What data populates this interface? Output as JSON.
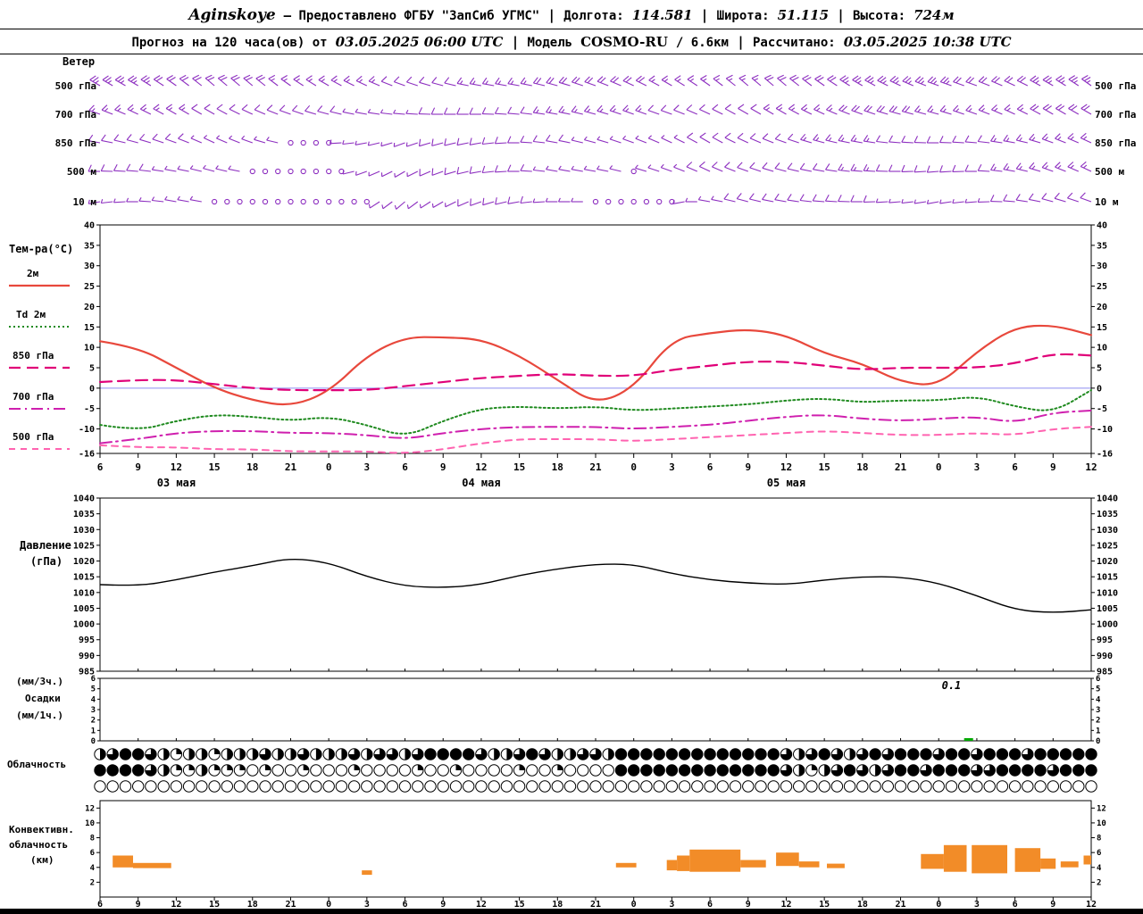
{
  "header1": {
    "station": "Aginskoye",
    "provider": "— Предоставлено ФГБУ \"ЗапСиб УГМС\"",
    "sep": "|",
    "lon_label": "Долгота:",
    "lon_value": "114.581",
    "lat_label": "Широта:",
    "lat_value": "51.115",
    "alt_label": "Высота:",
    "alt_value": "724м"
  },
  "header2": {
    "forecast_label": "Прогноз на 120 часа(ов) от",
    "forecast_start": "03.05.2025 06:00 UTC",
    "sep": "|",
    "model_label": "Модель",
    "model_name": "COSMO-RU",
    "model_suffix": "/ 6.6км",
    "calc_label": "Рассчитано:",
    "calc_value": "03.05.2025 10:38 UTC"
  },
  "panels": {
    "wind_title": "Ветер",
    "temp_title": "Тем-ра(°C)",
    "pressure_line1": "Давление",
    "pressure_line2": "(гПа)",
    "precip_line1": "(мм/3ч.)",
    "precip_line2": "Осадки",
    "precip_line3": "(мм/1ч.)",
    "cloud_title": "Облачность",
    "conv_line1": "Конвективн.",
    "conv_line2": "облачность",
    "conv_line3": "(км)"
  },
  "chart_data": {
    "type": "meteogram",
    "x": {
      "tick_labels": [
        "6",
        "9",
        "12",
        "15",
        "18",
        "21",
        "0",
        "3",
        "6",
        "9",
        "12",
        "15",
        "18",
        "21",
        "0",
        "3",
        "6",
        "9",
        "12",
        "15",
        "18",
        "21",
        "0",
        "3",
        "6",
        "9",
        "12"
      ],
      "hours_span": 78,
      "step_hours": 3,
      "date_labels": [
        {
          "text": "03 мая",
          "noon_hour": 6
        },
        {
          "text": "04 мая",
          "noon_hour": 30
        },
        {
          "text": "05 мая",
          "noon_hour": 54
        }
      ]
    },
    "wind": {
      "color": "#8d2fc0",
      "levels": [
        {
          "name": "500 гПа",
          "dir": [
            300,
            300,
            305,
            310,
            310,
            305,
            300,
            295,
            290,
            285,
            280,
            280,
            285,
            290,
            295,
            300,
            305,
            310,
            310,
            305,
            300,
            295,
            290,
            290,
            295,
            300,
            305
          ],
          "spd": [
            25,
            25,
            20,
            20,
            20,
            15,
            15,
            15,
            10,
            10,
            15,
            15,
            20,
            20,
            20,
            15,
            15,
            15,
            20,
            20,
            25,
            25,
            25,
            20,
            20,
            25,
            25
          ]
        },
        {
          "name": "700 гПа",
          "dir": [
            290,
            295,
            300,
            300,
            295,
            290,
            285,
            280,
            275,
            270,
            270,
            275,
            280,
            285,
            290,
            290,
            295,
            300,
            300,
            295,
            290,
            285,
            285,
            290,
            295,
            300,
            300
          ],
          "spd": [
            15,
            15,
            15,
            10,
            10,
            10,
            10,
            5,
            5,
            10,
            10,
            10,
            15,
            15,
            15,
            10,
            10,
            10,
            15,
            15,
            20,
            20,
            15,
            15,
            15,
            20,
            20
          ]
        },
        {
          "name": "850 гПа",
          "dir": [
            280,
            285,
            290,
            295,
            290,
            280,
            270,
            260,
            250,
            255,
            260,
            270,
            280,
            285,
            290,
            295,
            300,
            295,
            290,
            285,
            280,
            275,
            270,
            275,
            280,
            290,
            295
          ],
          "spd": [
            10,
            10,
            10,
            5,
            5,
            2,
            2,
            5,
            5,
            10,
            10,
            10,
            10,
            5,
            5,
            5,
            10,
            10,
            10,
            15,
            15,
            10,
            10,
            10,
            15,
            15,
            15
          ]
        },
        {
          "name": "500 м",
          "dir": [
            270,
            275,
            280,
            285,
            280,
            270,
            270,
            250,
            240,
            250,
            260,
            270,
            280,
            280,
            285,
            290,
            295,
            290,
            285,
            280,
            275,
            270,
            265,
            270,
            280,
            290,
            295
          ],
          "spd": [
            10,
            10,
            5,
            5,
            2,
            2,
            0,
            5,
            5,
            10,
            10,
            10,
            5,
            5,
            2,
            5,
            10,
            10,
            10,
            10,
            15,
            10,
            10,
            10,
            15,
            15,
            15
          ]
        },
        {
          "name": "10 м",
          "dir": [
            260,
            270,
            280,
            280,
            270,
            260,
            260,
            240,
            230,
            240,
            250,
            260,
            270,
            270,
            260,
            250,
            280,
            285,
            280,
            275,
            270,
            265,
            260,
            265,
            275,
            285,
            290
          ],
          "spd": [
            5,
            5,
            5,
            2,
            2,
            0,
            0,
            2,
            5,
            5,
            10,
            10,
            5,
            2,
            0,
            2,
            5,
            10,
            10,
            10,
            10,
            5,
            5,
            5,
            10,
            10,
            10
          ]
        }
      ]
    },
    "temperature": {
      "ylim": [
        -16,
        40
      ],
      "yticks": [
        40,
        35,
        30,
        25,
        20,
        15,
        10,
        5,
        0,
        -5,
        -10,
        -16
      ],
      "zero_line_color": "#8c8cf0",
      "series": [
        {
          "name": "2м",
          "color": "#e8483c",
          "style": "solid",
          "width": 2.2,
          "values": [
            11.5,
            10,
            5,
            0,
            -3,
            -4.5,
            -1,
            8,
            12.5,
            12.5,
            12,
            8,
            2,
            -4,
            0,
            12,
            13.5,
            14.5,
            13,
            8.5,
            6,
            1.5,
            0.5,
            9,
            15,
            15.5,
            13
          ]
        },
        {
          "name": "Td 2м",
          "color": "#1f8a1f",
          "style": "dotted",
          "width": 2,
          "values": [
            -9,
            -10.5,
            -8,
            -6.5,
            -7,
            -8,
            -7,
            -9,
            -12,
            -8,
            -5,
            -4.5,
            -5,
            -4.5,
            -5.5,
            -5,
            -4.5,
            -4,
            -3,
            -2.5,
            -3.5,
            -3,
            -3,
            -2,
            -4.5,
            -6,
            -0.5
          ]
        },
        {
          "name": "850 гПа",
          "color": "#e00078",
          "style": "longdash",
          "width": 2.2,
          "values": [
            1.5,
            2,
            2,
            1,
            0,
            -0.5,
            -0.5,
            -0.5,
            0.5,
            1.5,
            2.5,
            3,
            3.5,
            3,
            3,
            4.5,
            5.5,
            6.5,
            6.5,
            5.5,
            4.5,
            5,
            5,
            5,
            6,
            8.5,
            8
          ]
        },
        {
          "name": "700 гПа",
          "color": "#cf1fae",
          "style": "dashdot",
          "width": 2,
          "values": [
            -13.5,
            -12.5,
            -11,
            -10.5,
            -10.5,
            -11,
            -11,
            -11.5,
            -12.5,
            -11,
            -10,
            -9.5,
            -9.5,
            -9.5,
            -10,
            -9.5,
            -9,
            -8,
            -7,
            -6.5,
            -7.5,
            -8,
            -7.5,
            -7,
            -8.5,
            -6,
            -5.5
          ]
        },
        {
          "name": "500 гПа",
          "color": "#ff63b0",
          "style": "shortdash",
          "width": 2,
          "values": [
            -14,
            -14.5,
            -14.5,
            -15,
            -15,
            -15.5,
            -15.5,
            -15.5,
            -16,
            -15,
            -13.5,
            -12.5,
            -12.5,
            -12.5,
            -13,
            -12.5,
            -12,
            -11.5,
            -11,
            -10.5,
            -11,
            -11.5,
            -11.5,
            -11,
            -11.5,
            -10,
            -9.5
          ]
        }
      ]
    },
    "pressure": {
      "ylim": [
        985,
        1040
      ],
      "yticks": [
        1040,
        1035,
        1030,
        1025,
        1020,
        1015,
        1010,
        1005,
        1000,
        995,
        990,
        985
      ],
      "color": "#000000",
      "values": [
        1012.5,
        1012,
        1014,
        1016.5,
        1018.5,
        1021,
        1019.5,
        1015,
        1012,
        1011.5,
        1012.5,
        1015.5,
        1017.5,
        1019,
        1019,
        1016,
        1014,
        1013,
        1012.5,
        1014,
        1015,
        1015,
        1013,
        1009,
        1004.5,
        1003.5,
        1004.5
      ]
    },
    "precipitation": {
      "ylim": [
        0,
        6
      ],
      "yticks": [
        6,
        5,
        4,
        3,
        2,
        1,
        0
      ],
      "bar_color": "#00a800",
      "bars_3h": [
        {
          "hour": 68,
          "value": 0.1
        }
      ],
      "annotation": {
        "text": "0.1",
        "hour": 67
      }
    },
    "cloudiness": {
      "rows_octas": [
        [
          4,
          6,
          8,
          8,
          6,
          4,
          2,
          4,
          4,
          2,
          4,
          4,
          4,
          6,
          4,
          4,
          6,
          4,
          4,
          4,
          6,
          4,
          6,
          6,
          4,
          6,
          8,
          8,
          8,
          8,
          6,
          4,
          4,
          6,
          8,
          6,
          4,
          4,
          6,
          6,
          4,
          8,
          8,
          8,
          8,
          8,
          8,
          8,
          8,
          8,
          8,
          8,
          8,
          8,
          6,
          4,
          6,
          8,
          6,
          4,
          6,
          8,
          6,
          8,
          8,
          8,
          6,
          8,
          8,
          6,
          8,
          8,
          8,
          6,
          8,
          8,
          8,
          8,
          8
        ],
        [
          8,
          8,
          8,
          8,
          6,
          4,
          2,
          2,
          4,
          2,
          2,
          2,
          0,
          2,
          0,
          0,
          2,
          0,
          0,
          0,
          2,
          0,
          0,
          0,
          0,
          2,
          0,
          0,
          2,
          0,
          0,
          0,
          0,
          2,
          0,
          0,
          2,
          0,
          0,
          0,
          0,
          8,
          8,
          8,
          8,
          8,
          8,
          8,
          8,
          8,
          8,
          8,
          8,
          8,
          6,
          4,
          2,
          4,
          6,
          8,
          6,
          4,
          6,
          8,
          8,
          6,
          8,
          8,
          8,
          6,
          6,
          8,
          8,
          8,
          8,
          6,
          8,
          8,
          8
        ],
        [
          0,
          0,
          0,
          0,
          0,
          0,
          0,
          0,
          0,
          0,
          0,
          0,
          0,
          0,
          0,
          0,
          0,
          0,
          0,
          0,
          0,
          0,
          0,
          0,
          0,
          0,
          0,
          0,
          0,
          0,
          0,
          0,
          0,
          0,
          0,
          0,
          0,
          0,
          0,
          0,
          0,
          0,
          0,
          0,
          0,
          0,
          0,
          0,
          0,
          0,
          0,
          0,
          0,
          0,
          0,
          0,
          0,
          0,
          0,
          0,
          0,
          0,
          0,
          0,
          0,
          0,
          0,
          0,
          0,
          0,
          0,
          0,
          0,
          0,
          0,
          0,
          0,
          0,
          0
        ]
      ]
    },
    "convective": {
      "ylim": [
        0,
        13
      ],
      "yticks": [
        12,
        10,
        8,
        6,
        4,
        2
      ],
      "color": "#f28c28",
      "bars": [
        {
          "from": 1.0,
          "to": 2.6,
          "base": 4.0,
          "top": 5.6
        },
        {
          "from": 2.6,
          "to": 5.6,
          "base": 3.9,
          "top": 4.6
        },
        {
          "from": 20.6,
          "to": 21.4,
          "base": 3.0,
          "top": 3.6
        },
        {
          "from": 40.6,
          "to": 42.2,
          "base": 4.0,
          "top": 4.6
        },
        {
          "from": 44.6,
          "to": 45.4,
          "base": 3.6,
          "top": 5.0
        },
        {
          "from": 45.4,
          "to": 46.4,
          "base": 3.5,
          "top": 5.6
        },
        {
          "from": 46.4,
          "to": 50.4,
          "base": 3.4,
          "top": 6.4
        },
        {
          "from": 50.4,
          "to": 52.4,
          "base": 4.0,
          "top": 5.0
        },
        {
          "from": 53.2,
          "to": 55.0,
          "base": 4.2,
          "top": 6.0
        },
        {
          "from": 55.0,
          "to": 56.6,
          "base": 4.0,
          "top": 4.8
        },
        {
          "from": 57.2,
          "to": 58.6,
          "base": 3.9,
          "top": 4.5
        },
        {
          "from": 64.6,
          "to": 66.4,
          "base": 3.8,
          "top": 5.8
        },
        {
          "from": 66.4,
          "to": 68.2,
          "base": 3.4,
          "top": 7.0
        },
        {
          "from": 68.6,
          "to": 71.4,
          "base": 3.2,
          "top": 7.0
        },
        {
          "from": 72.0,
          "to": 74.0,
          "base": 3.4,
          "top": 6.6
        },
        {
          "from": 74.0,
          "to": 75.2,
          "base": 3.8,
          "top": 5.2
        },
        {
          "from": 75.6,
          "to": 77.0,
          "base": 4.0,
          "top": 4.8
        },
        {
          "from": 77.4,
          "to": 78.0,
          "base": 4.4,
          "top": 5.6
        }
      ]
    }
  }
}
